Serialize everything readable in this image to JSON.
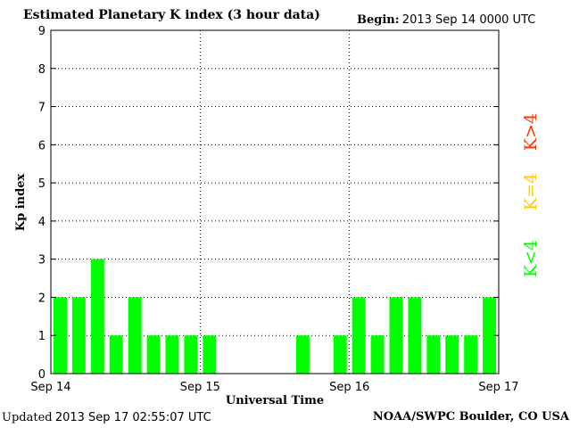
{
  "header": {
    "title": "Estimated Planetary K index (3 hour data)",
    "begin_label": "Begin:",
    "begin_value": "2013 Sep 14 0000 UTC"
  },
  "footer": {
    "updated_label": "Updated",
    "updated_value": "2013 Sep 17 02:55:07 UTC",
    "credit": "NOAA/SWPC Boulder, CO USA"
  },
  "legend": [
    {
      "label": "K<4",
      "color": "#00ff00"
    },
    {
      "label": "K=4",
      "color": "#ffcc00"
    },
    {
      "label": "K>4",
      "color": "#ff3300"
    }
  ],
  "chart_data": {
    "type": "bar",
    "title": "Estimated Planetary K index (3 hour data)",
    "xlabel": "Universal Time",
    "ylabel": "Kp index",
    "ylim": [
      0,
      9
    ],
    "yticks": [
      0,
      1,
      2,
      3,
      4,
      5,
      6,
      7,
      8,
      9
    ],
    "xticks": [
      "Sep 14",
      "Sep 15",
      "Sep 16",
      "Sep 17"
    ],
    "grid": "dotted",
    "bar_color": "#00ff00",
    "interval_hours": 3,
    "values": [
      2,
      2,
      3,
      1,
      2,
      1,
      1,
      1,
      1,
      null,
      null,
      null,
      null,
      1,
      null,
      1,
      2,
      1,
      2,
      2,
      1,
      1,
      1,
      2
    ]
  }
}
